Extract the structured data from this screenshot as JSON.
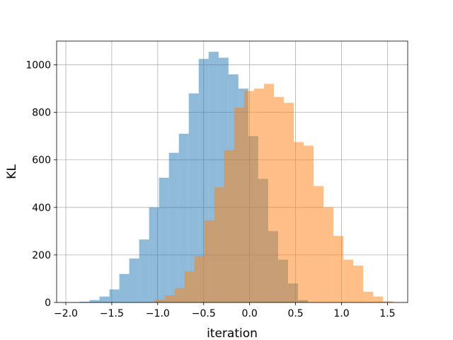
{
  "chart_data": {
    "type": "bar",
    "subtype": "histogram",
    "title": "",
    "xlabel": "iteration",
    "ylabel": "KL",
    "xlim": [
      -2.1,
      1.72
    ],
    "ylim": [
      0,
      1100
    ],
    "xticks": [
      -2.0,
      -1.5,
      -1.0,
      -0.5,
      0.0,
      0.5,
      1.0,
      1.5
    ],
    "xtick_labels": [
      "−2.0",
      "−1.5",
      "−1.0",
      "−0.5",
      "0.0",
      "0.5",
      "1.0",
      "1.5"
    ],
    "yticks": [
      0,
      200,
      400,
      600,
      800,
      1000
    ],
    "ytick_labels": [
      "0",
      "200",
      "400",
      "600",
      "800",
      "1000"
    ],
    "grid": true,
    "legend": "none",
    "series": [
      {
        "color": "#1f77b4",
        "alpha": 0.5,
        "bin_width": 0.108,
        "bin_edges": [
          -1.85,
          -1.742,
          -1.634,
          -1.526,
          -1.418,
          -1.31,
          -1.202,
          -1.094,
          -0.986,
          -0.878,
          -0.77,
          -0.662,
          -0.554,
          -0.446,
          -0.338,
          -0.23,
          -0.122,
          -0.014,
          0.094,
          0.202,
          0.31,
          0.418,
          0.526
        ],
        "counts": [
          3,
          10,
          25,
          55,
          120,
          185,
          265,
          400,
          525,
          630,
          710,
          880,
          1025,
          1055,
          1030,
          960,
          900,
          700,
          520,
          300,
          180,
          80,
          10
        ]
      },
      {
        "color": "#ff7f0e",
        "alpha": 0.5,
        "bin_width": 0.108,
        "bin_edges": [
          -1.14,
          -1.032,
          -0.924,
          -0.816,
          -0.708,
          -0.6,
          -0.492,
          -0.384,
          -0.276,
          -0.168,
          -0.06,
          0.048,
          0.156,
          0.264,
          0.372,
          0.48,
          0.588,
          0.696,
          0.804,
          0.912,
          1.02,
          1.128,
          1.236,
          1.344,
          1.452
        ],
        "counts": [
          2,
          12,
          30,
          60,
          130,
          195,
          345,
          485,
          640,
          820,
          890,
          900,
          920,
          865,
          840,
          675,
          660,
          490,
          400,
          280,
          180,
          155,
          45,
          25,
          5
        ]
      }
    ]
  }
}
